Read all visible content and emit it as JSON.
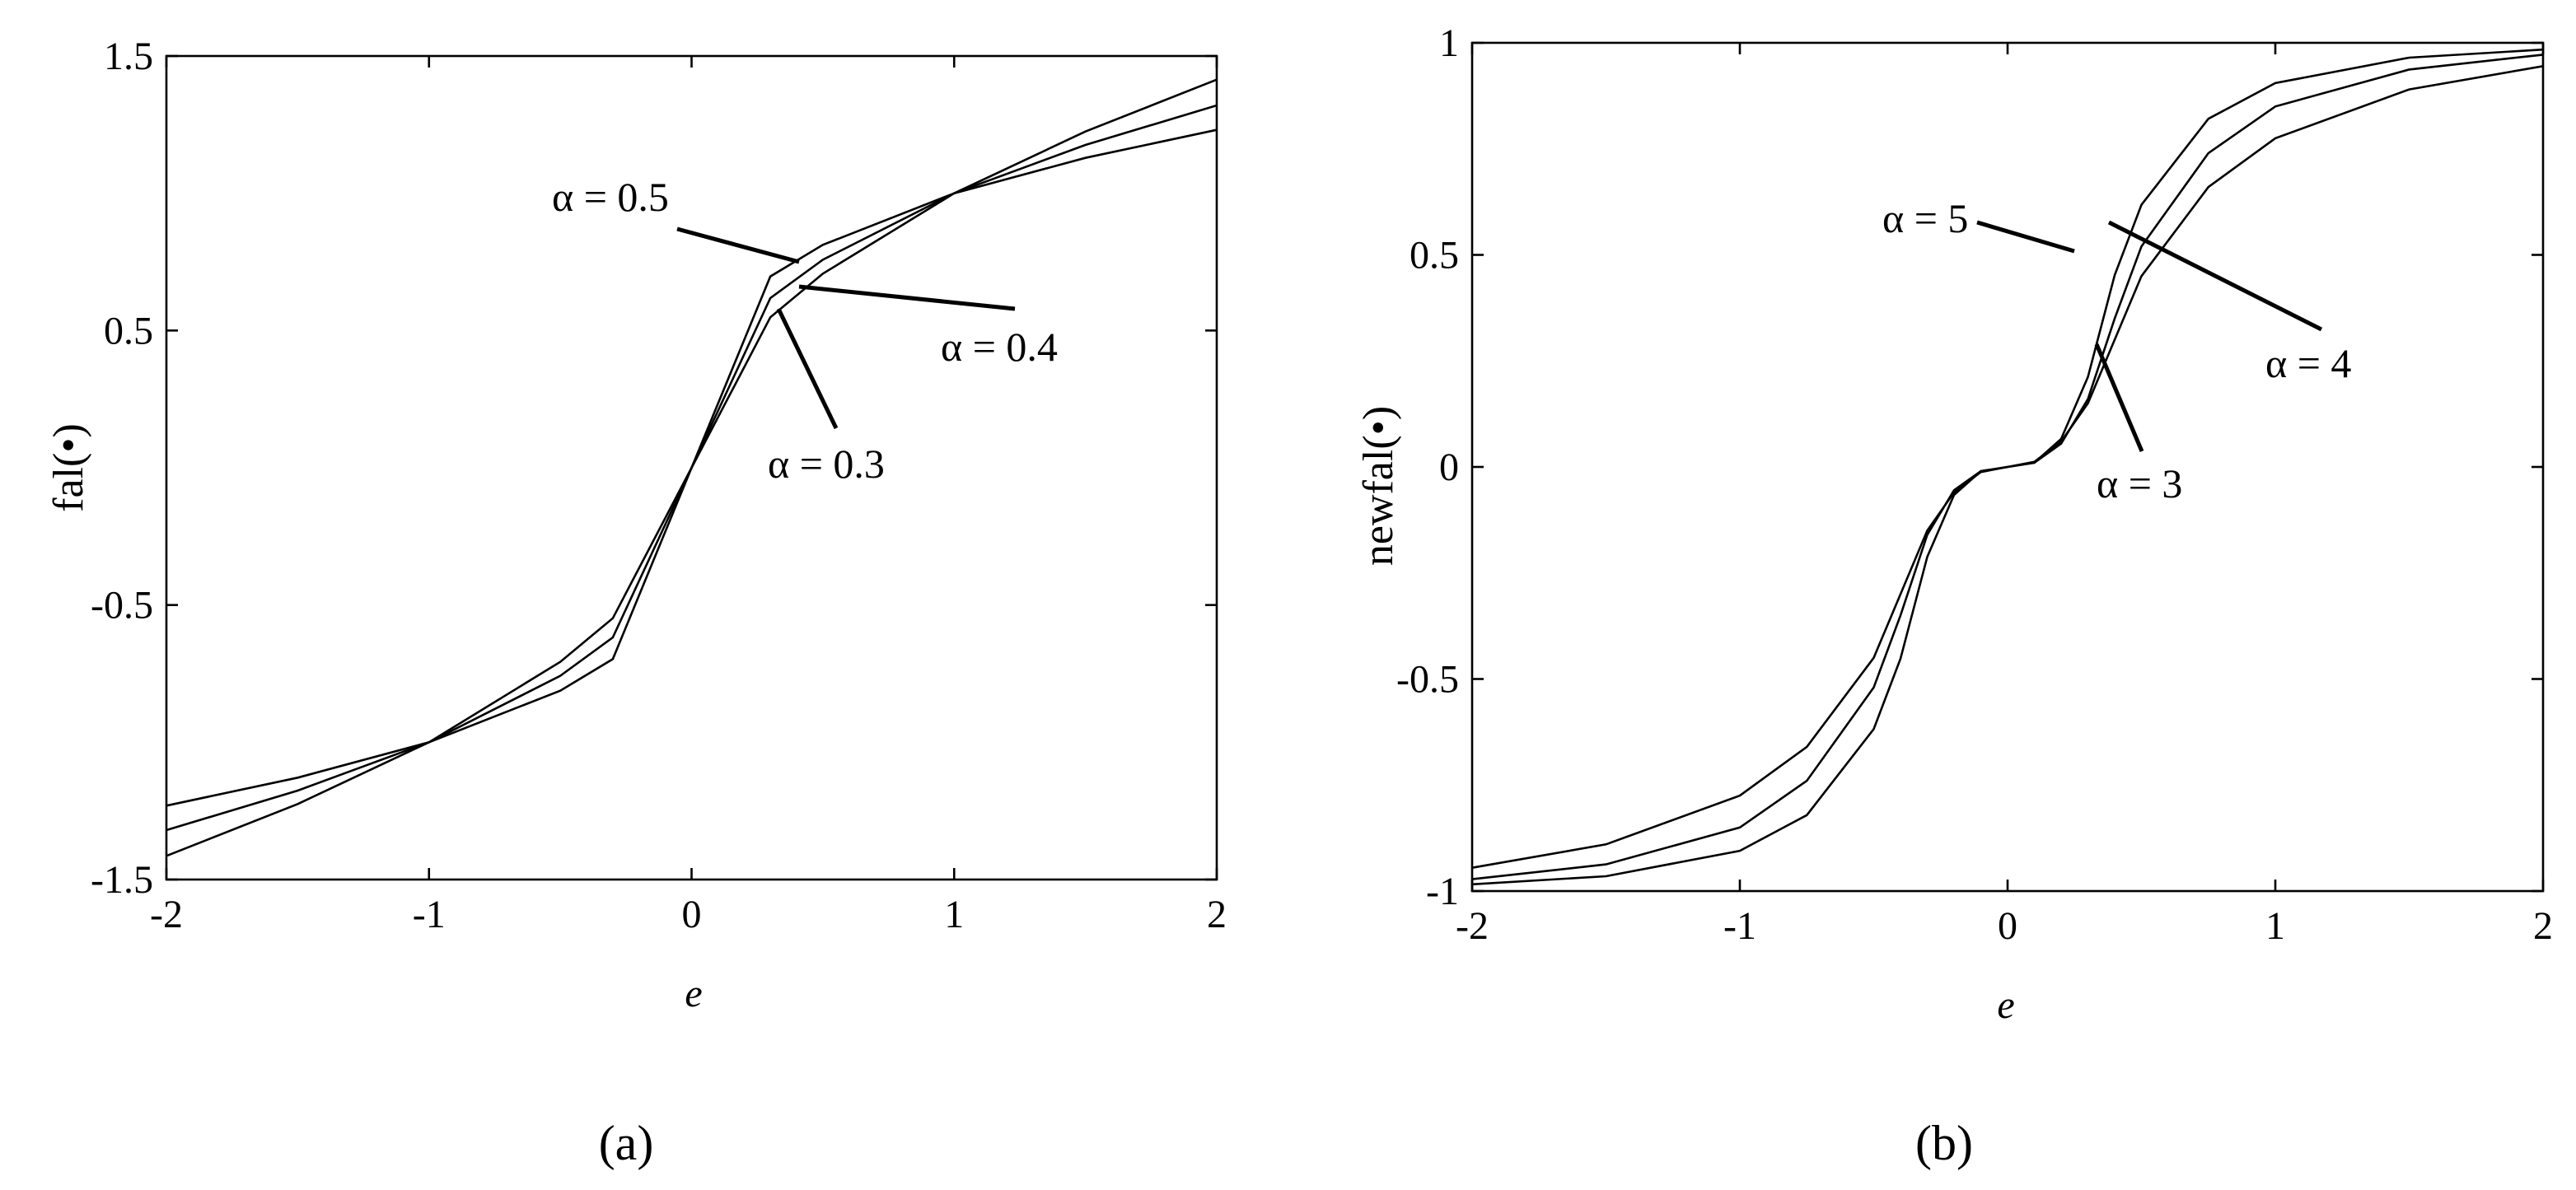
{
  "chart_data": [
    {
      "type": "line",
      "caption": "(a)",
      "xlabel": "e",
      "ylabel": "fal(•)",
      "xlim": [
        -2,
        2
      ],
      "ylim": [
        -1.5,
        1.5
      ],
      "xticks": [
        "-2",
        "-1",
        "0",
        "1",
        "2"
      ],
      "yticks": [
        "1.5",
        "0.5",
        "-0.5",
        "-1.5"
      ],
      "x": [
        -2,
        -1.5,
        -1,
        -0.5,
        -0.3,
        0,
        0.3,
        0.5,
        1,
        1.5,
        2
      ],
      "series": [
        {
          "alpha": 0.5,
          "values": [
            -1.414,
            -1.225,
            -1.0,
            -0.707,
            -0.548,
            0,
            0.548,
            0.707,
            1.0,
            1.225,
            1.414
          ]
        },
        {
          "alpha": 0.4,
          "values": [
            -1.32,
            -1.176,
            -1.0,
            -0.758,
            -0.618,
            0,
            0.618,
            0.758,
            1.0,
            1.176,
            1.32
          ]
        },
        {
          "alpha": 0.3,
          "values": [
            -1.231,
            -1.129,
            -1.0,
            -0.812,
            -0.697,
            0,
            0.697,
            0.812,
            1.0,
            1.129,
            1.231
          ]
        }
      ],
      "annotations": [
        {
          "text": "α = 0.5"
        },
        {
          "text": "α = 0.4"
        },
        {
          "text": "α = 0.3"
        }
      ],
      "grid": false,
      "legend": "none"
    },
    {
      "type": "line",
      "caption": "(b)",
      "xlabel": "e",
      "ylabel": "newfal(•)",
      "xlim": [
        -2,
        2
      ],
      "ylim": [
        -1,
        1
      ],
      "xticks": [
        "-2",
        "-1",
        "0",
        "1",
        "2"
      ],
      "yticks": [
        "1",
        "0.5",
        "0",
        "-0.5",
        "-1"
      ],
      "x": [
        -2,
        -1.5,
        -1,
        -0.75,
        -0.5,
        -0.4,
        -0.3,
        -0.2,
        -0.1,
        0,
        0.1,
        0.2,
        0.3,
        0.4,
        0.5,
        0.75,
        1,
        1.5,
        2
      ],
      "series": [
        {
          "alpha": 5,
          "values": [
            -0.984,
            -0.965,
            -0.905,
            -0.821,
            -0.618,
            -0.452,
            -0.212,
            -0.066,
            -0.01,
            0,
            0.01,
            0.066,
            0.212,
            0.452,
            0.618,
            0.821,
            0.905,
            0.965,
            0.984
          ]
        },
        {
          "alpha": 4,
          "values": [
            -0.972,
            -0.937,
            -0.85,
            -0.74,
            -0.52,
            -0.35,
            -0.16,
            -0.055,
            -0.01,
            0,
            0.01,
            0.055,
            0.16,
            0.35,
            0.52,
            0.74,
            0.85,
            0.937,
            0.972
          ]
        },
        {
          "alpha": 3,
          "values": [
            -0.945,
            -0.89,
            -0.775,
            -0.66,
            -0.45,
            -0.3,
            -0.15,
            -0.06,
            -0.012,
            0,
            0.012,
            0.06,
            0.15,
            0.3,
            0.45,
            0.66,
            0.775,
            0.89,
            0.945
          ]
        }
      ],
      "annotations": [
        {
          "text": "α = 5"
        },
        {
          "text": "α = 4"
        },
        {
          "text": "α = 3"
        }
      ],
      "grid": false,
      "legend": "none"
    }
  ]
}
